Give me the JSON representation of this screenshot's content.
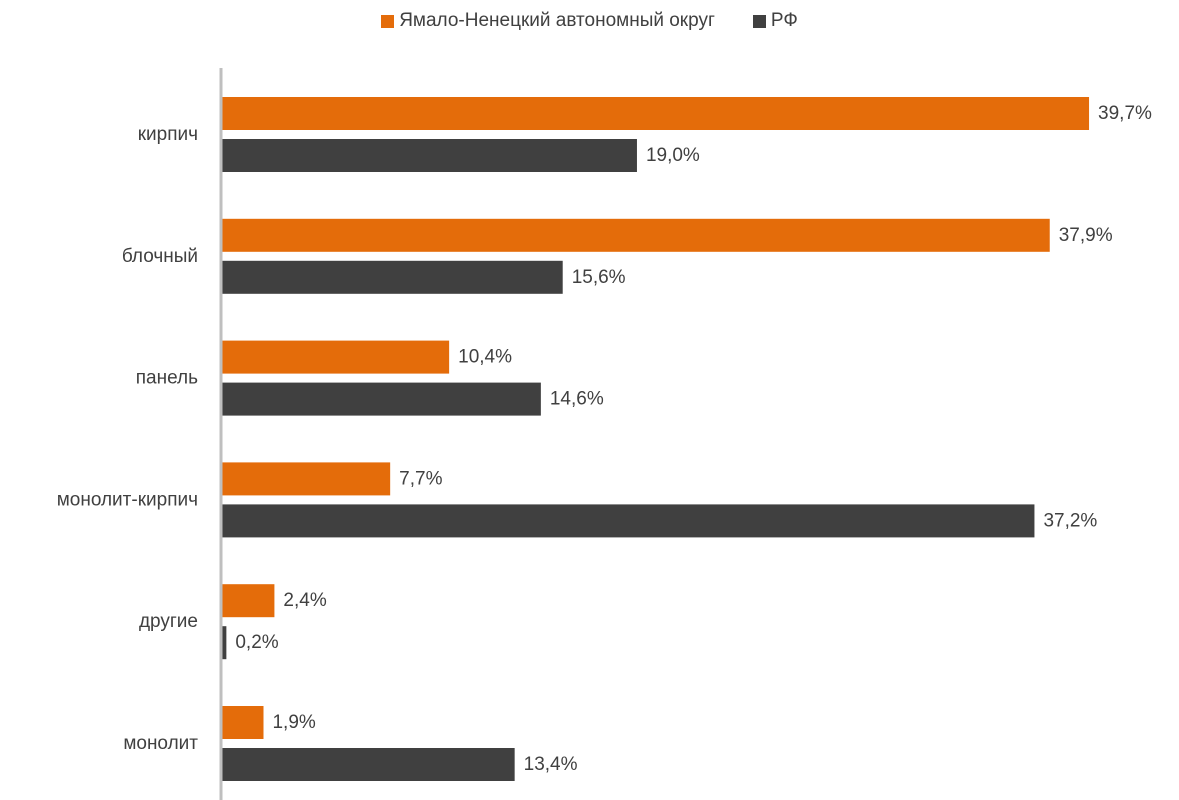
{
  "chart_data": {
    "type": "bar",
    "orientation": "horizontal",
    "title": "",
    "xlabel": "",
    "ylabel": "",
    "categories": [
      "кирпич",
      "блочный",
      "панель",
      "монолит-кирпич",
      "другие",
      "монолит"
    ],
    "series": [
      {
        "name": "Ямало-Ненецкий автономный округ",
        "color": "#E46C0A",
        "values": [
          39.7,
          37.9,
          10.4,
          7.7,
          2.4,
          1.9
        ],
        "labels": [
          "39,7%",
          "37,9%",
          "10,4%",
          "7,7%",
          "2,4%",
          "1,9%"
        ]
      },
      {
        "name": "РФ",
        "color": "#404040",
        "values": [
          19.0,
          15.6,
          14.6,
          37.2,
          0.2,
          13.4
        ],
        "labels": [
          "19,0%",
          "15,6%",
          "14,6%",
          "37,2%",
          "0,2%",
          "13,4%"
        ]
      }
    ],
    "xlim": [
      0,
      40
    ],
    "grid": false,
    "legend_position": "top-center",
    "axis_color": "#BFBFBF",
    "text_color": "#404040"
  }
}
